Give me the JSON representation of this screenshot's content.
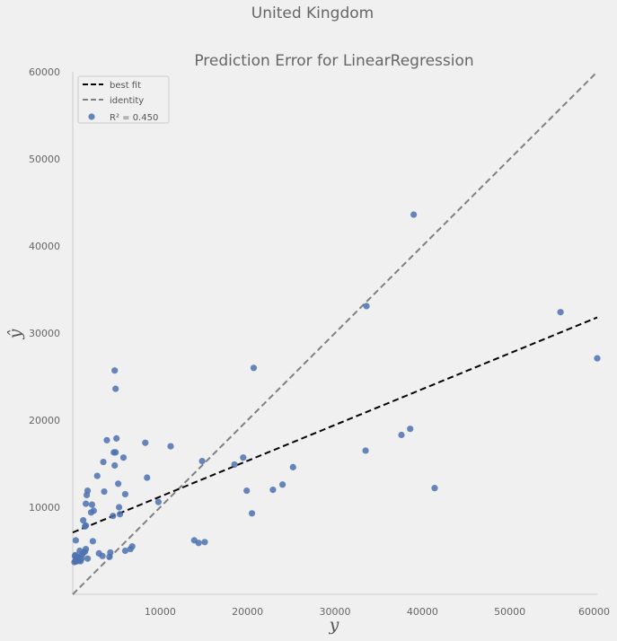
{
  "figure": {
    "suptitle": "United Kingdom"
  },
  "chart_data": {
    "type": "scatter",
    "title": "Prediction Error for LinearRegression",
    "xlabel": "y",
    "ylabel": "ŷ",
    "xlim": [
      0,
      60000
    ],
    "ylim": [
      0,
      60000
    ],
    "x_ticks": [
      {
        "value": 10000,
        "label": "10000"
      },
      {
        "value": 20000,
        "label": "20000"
      },
      {
        "value": 30000,
        "label": "30000"
      },
      {
        "value": 40000,
        "label": "40000"
      },
      {
        "value": 50000,
        "label": "50000"
      },
      {
        "value": 60000,
        "label": "60000"
      }
    ],
    "y_ticks": [
      {
        "value": 10000,
        "label": "10000"
      },
      {
        "value": 20000,
        "label": "20000"
      },
      {
        "value": 30000,
        "label": "30000"
      },
      {
        "value": 40000,
        "label": "40000"
      },
      {
        "value": 50000,
        "label": "50000"
      },
      {
        "value": 60000,
        "label": "60000"
      }
    ],
    "grid": false,
    "legend_position": "upper-left",
    "legend": [
      {
        "label": "best fit",
        "kind": "line",
        "color": "#000000",
        "dash": "dashed"
      },
      {
        "label": "identity",
        "kind": "line",
        "color": "#808080",
        "dash": "dashed"
      },
      {
        "label": "R² = 0.450",
        "kind": "marker",
        "color": "#4c72b0"
      }
    ],
    "best_fit": {
      "from": [
        0,
        7100
      ],
      "to": [
        60000,
        31800
      ],
      "color": "#000000"
    },
    "identity": {
      "from": [
        0,
        0
      ],
      "to": [
        60000,
        60000
      ],
      "color": "#808080"
    },
    "point_color": "#4c72b0",
    "points": [
      [
        200,
        3700
      ],
      [
        300,
        3800
      ],
      [
        350,
        3900
      ],
      [
        400,
        4000
      ],
      [
        450,
        4100
      ],
      [
        500,
        3800
      ],
      [
        550,
        4200
      ],
      [
        600,
        4300
      ],
      [
        250,
        4400
      ],
      [
        300,
        4500
      ],
      [
        700,
        3900
      ],
      [
        800,
        4000
      ],
      [
        900,
        3800
      ],
      [
        1000,
        4100
      ],
      [
        1100,
        4600
      ],
      [
        1200,
        4800
      ],
      [
        1400,
        4900
      ],
      [
        1500,
        5200
      ],
      [
        1700,
        4100
      ],
      [
        350,
        6200
      ],
      [
        800,
        5000
      ],
      [
        1200,
        8500
      ],
      [
        1400,
        7800
      ],
      [
        1500,
        7900
      ],
      [
        1500,
        10400
      ],
      [
        1600,
        11400
      ],
      [
        1700,
        11900
      ],
      [
        2100,
        9400
      ],
      [
        2200,
        10300
      ],
      [
        2400,
        9600
      ],
      [
        2300,
        6100
      ],
      [
        2800,
        13600
      ],
      [
        3000,
        4700
      ],
      [
        3400,
        4400
      ],
      [
        3500,
        15200
      ],
      [
        3600,
        11800
      ],
      [
        3900,
        17700
      ],
      [
        4200,
        4300
      ],
      [
        4300,
        4800
      ],
      [
        4600,
        9000
      ],
      [
        4700,
        16300
      ],
      [
        4800,
        25700
      ],
      [
        4900,
        23600
      ],
      [
        4800,
        14800
      ],
      [
        5000,
        17900
      ],
      [
        4900,
        16300
      ],
      [
        5200,
        12700
      ],
      [
        5300,
        10000
      ],
      [
        5400,
        9200
      ],
      [
        5800,
        15700
      ],
      [
        6000,
        11500
      ],
      [
        6000,
        5000
      ],
      [
        6600,
        5200
      ],
      [
        6800,
        5500
      ],
      [
        8300,
        17400
      ],
      [
        8500,
        13400
      ],
      [
        9800,
        10600
      ],
      [
        11200,
        17000
      ],
      [
        13900,
        6200
      ],
      [
        14400,
        5900
      ],
      [
        14800,
        15300
      ],
      [
        15100,
        6000
      ],
      [
        18500,
        14900
      ],
      [
        19500,
        15700
      ],
      [
        19900,
        11900
      ],
      [
        20500,
        9300
      ],
      [
        20700,
        26000
      ],
      [
        22900,
        12000
      ],
      [
        24000,
        12600
      ],
      [
        25200,
        14600
      ],
      [
        33600,
        33100
      ],
      [
        33500,
        16500
      ],
      [
        37600,
        18300
      ],
      [
        38600,
        19000
      ],
      [
        39000,
        43600
      ],
      [
        41400,
        12200
      ],
      [
        55800,
        32400
      ],
      [
        60000,
        27100
      ]
    ]
  }
}
